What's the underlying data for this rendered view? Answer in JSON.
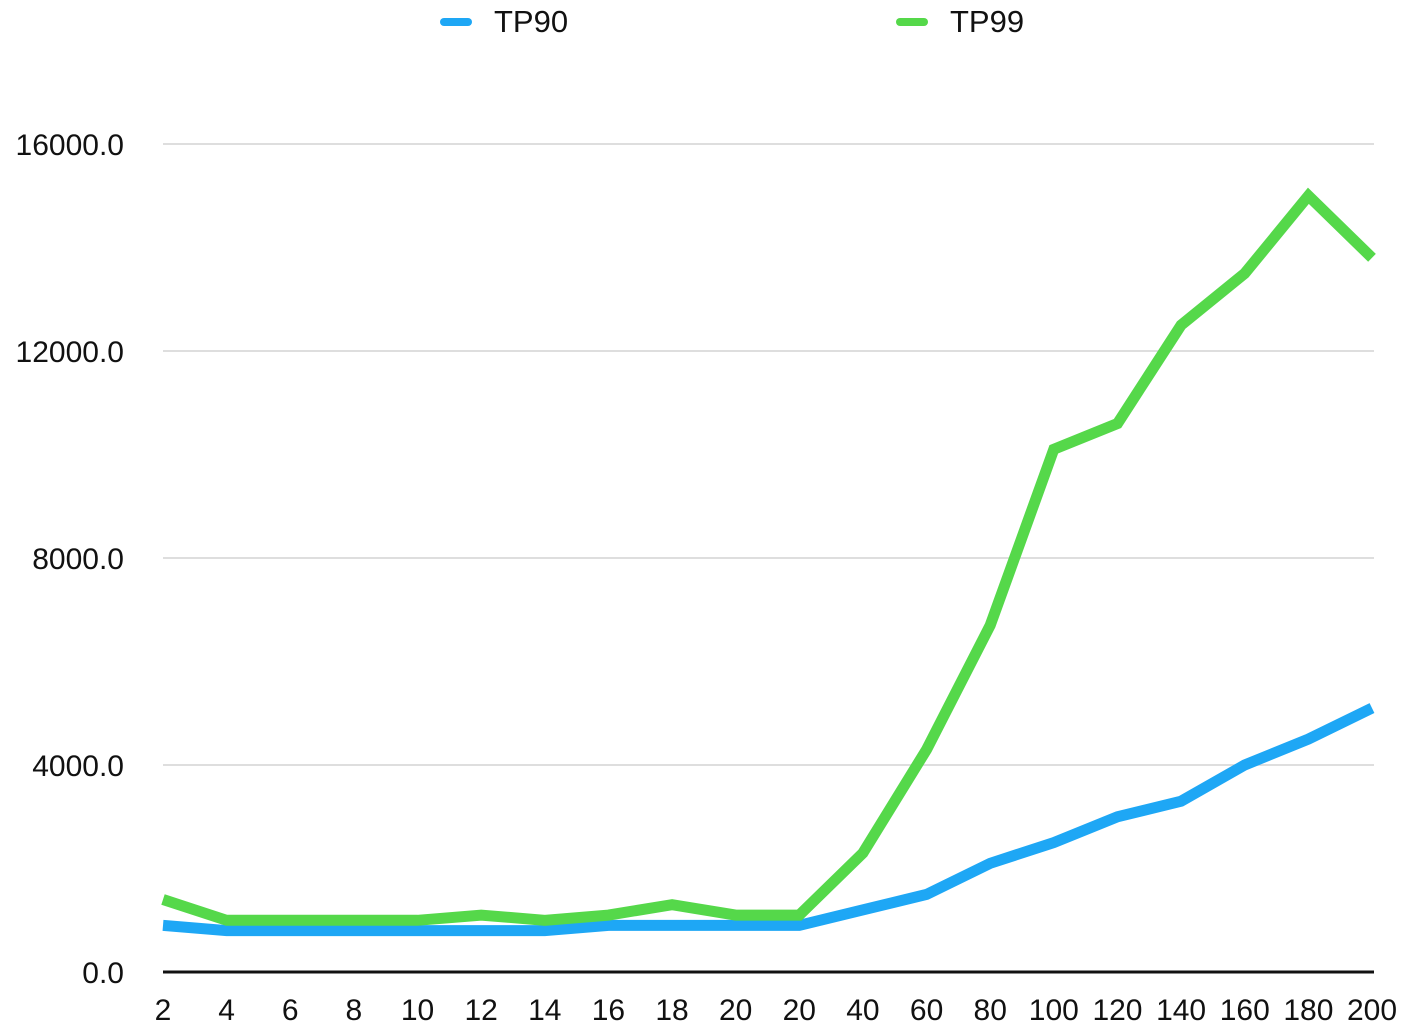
{
  "chart_data": {
    "type": "line",
    "title": "",
    "xlabel": "",
    "ylabel": "",
    "categories": [
      "2",
      "4",
      "6",
      "8",
      "10",
      "12",
      "14",
      "16",
      "18",
      "20",
      "20",
      "40",
      "60",
      "80",
      "100",
      "120",
      "140",
      "160",
      "180",
      "200"
    ],
    "series": [
      {
        "name": "TP90",
        "color": "#1ea7f5",
        "values": [
          900,
          800,
          800,
          800,
          800,
          800,
          800,
          900,
          900,
          900,
          900,
          1200,
          1500,
          2100,
          2500,
          3000,
          3300,
          4000,
          4500,
          5100
        ]
      },
      {
        "name": "TP99",
        "color": "#55d84a",
        "values": [
          1400,
          1000,
          1000,
          1000,
          1000,
          1100,
          1000,
          1100,
          1300,
          1100,
          1100,
          2300,
          4300,
          6700,
          10100,
          10600,
          12500,
          13500,
          15000,
          13800
        ]
      }
    ],
    "yticks": [
      "0.0",
      "4000.0",
      "8000.0",
      "12000.0",
      "16000.0"
    ],
    "ytick_values": [
      0,
      4000,
      8000,
      12000,
      16000
    ],
    "ylim": [
      0,
      16000
    ],
    "grid": true,
    "legend_position": "top-center"
  }
}
